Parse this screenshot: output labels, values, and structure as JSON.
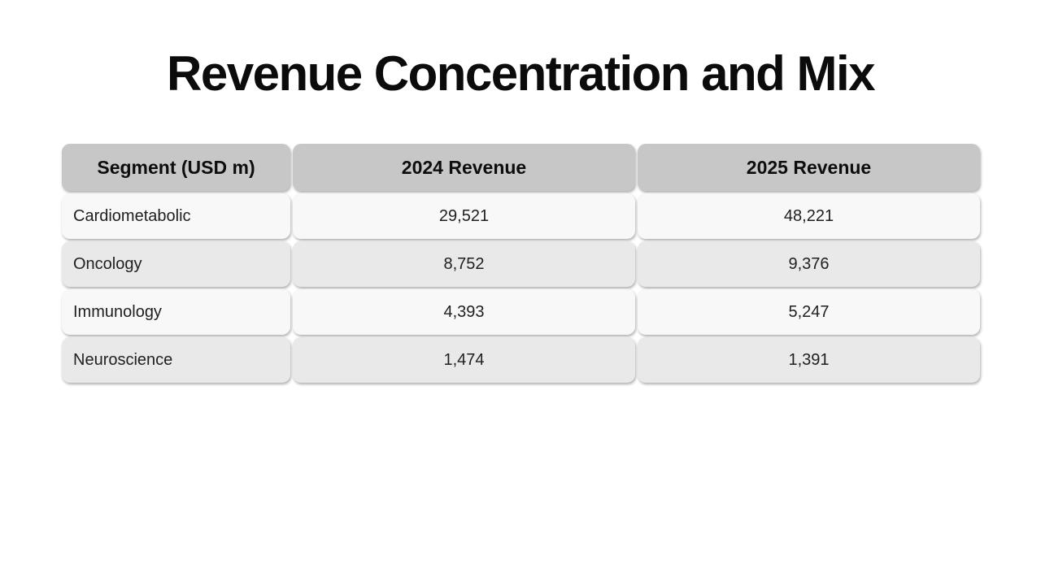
{
  "slide": {
    "title": "Revenue Concentration and Mix",
    "background_color": "#ffffff"
  },
  "table": {
    "columns": [
      "Segment (USD m)",
      "2024 Revenue",
      "2025 Revenue"
    ],
    "rows": [
      [
        "Cardiometabolic",
        "29,521",
        "48,221"
      ],
      [
        "Oncology",
        "8,752",
        "9,376"
      ],
      [
        "Immunology",
        "4,393",
        "5,247"
      ],
      [
        "Neuroscience",
        "1,474",
        "1,391"
      ]
    ],
    "colors": {
      "header_bg": "#c7c7c7",
      "row_light_bg": "#f8f8f8",
      "row_dark_bg": "#e9e9e9",
      "header_text": "#0d0d0d",
      "body_text": "#1f1f1f",
      "title_text": "#0b0b0b"
    }
  }
}
